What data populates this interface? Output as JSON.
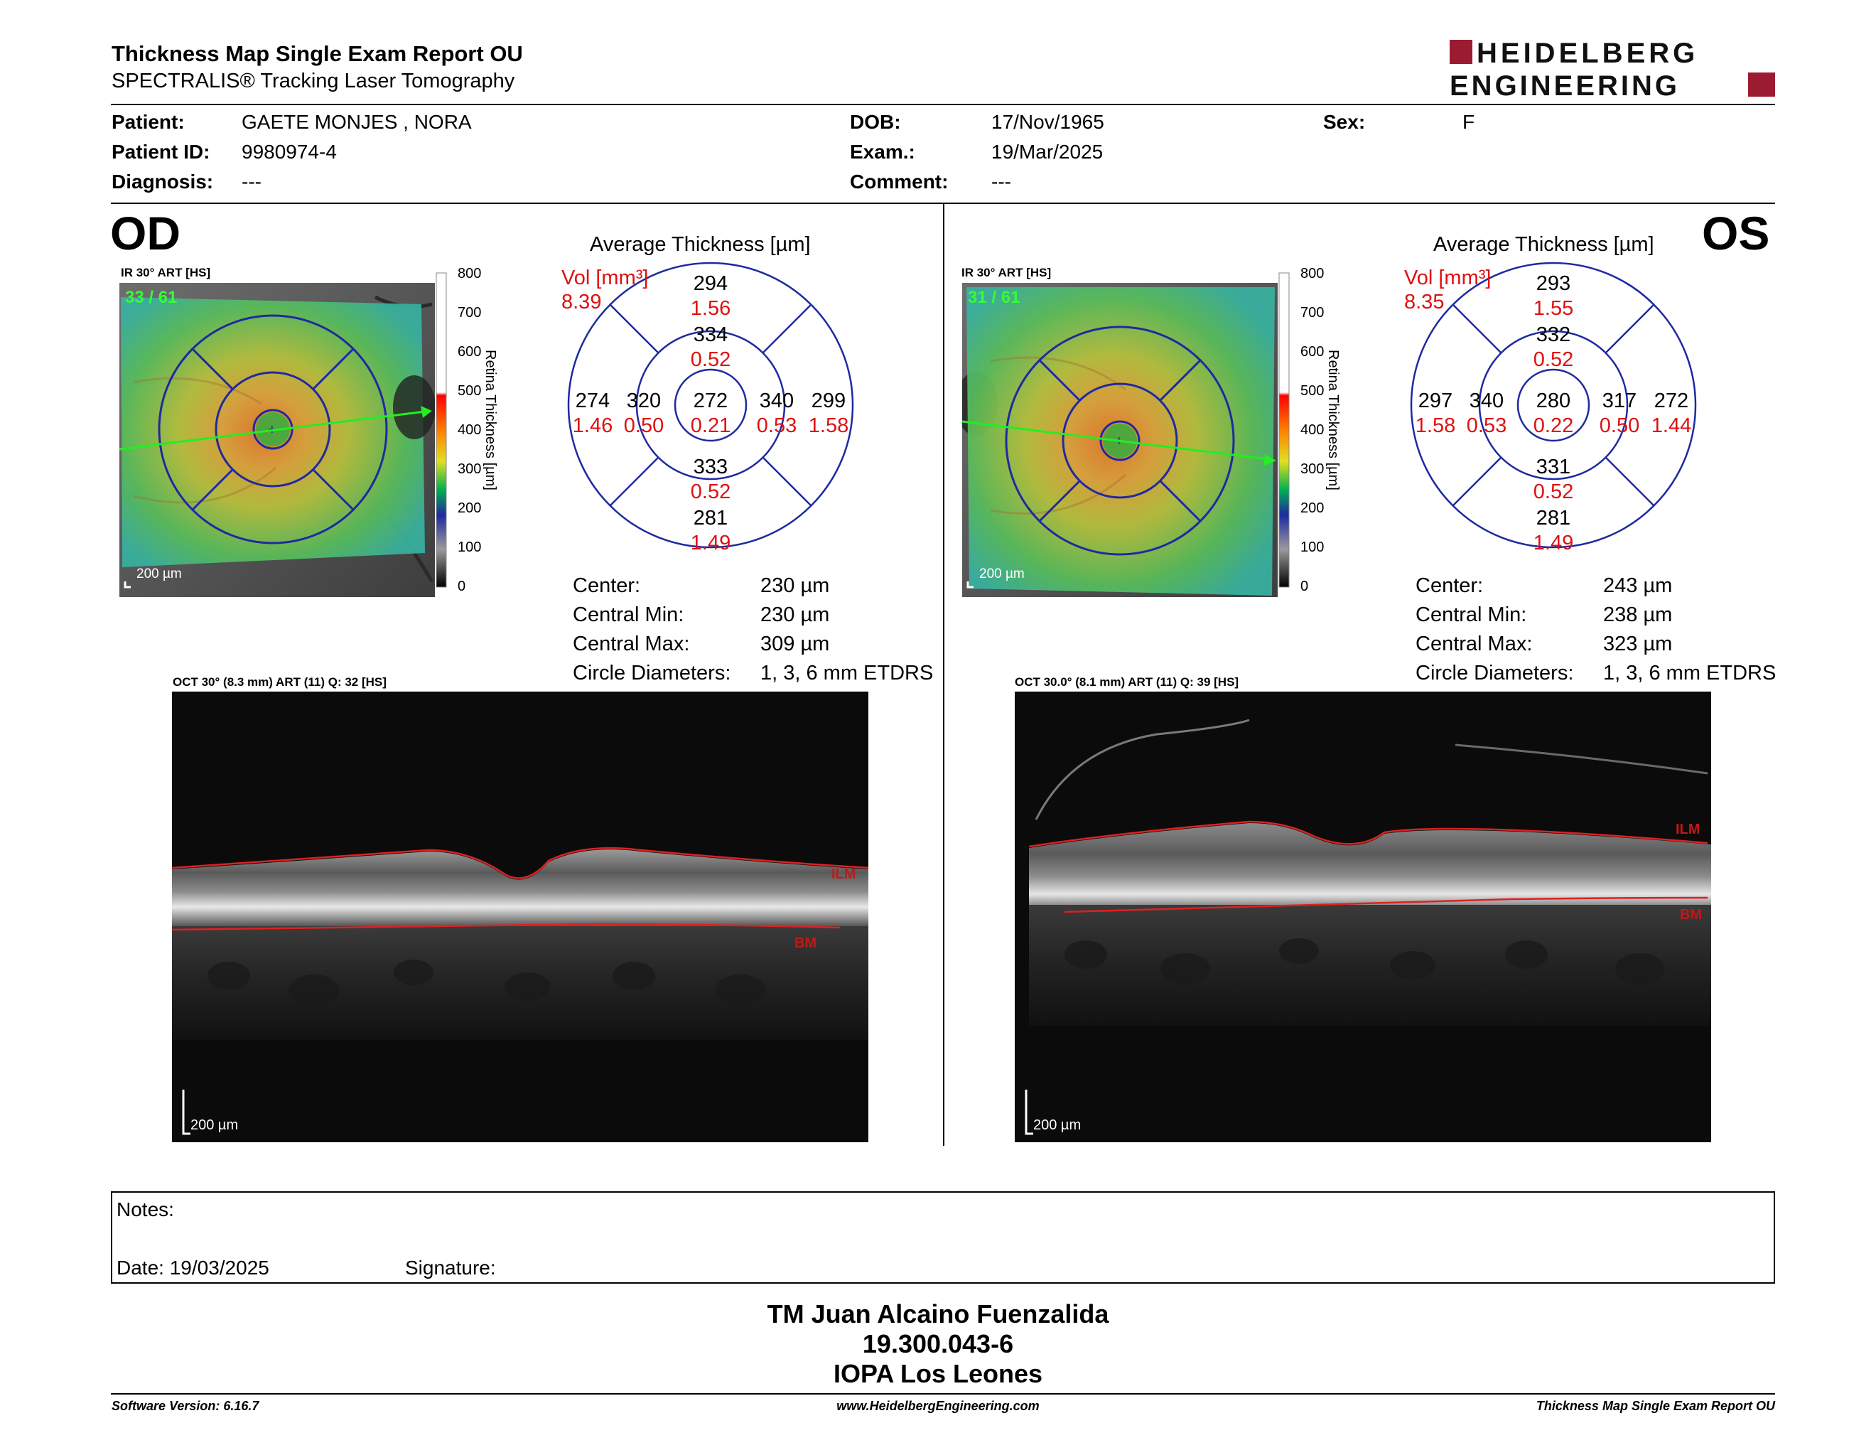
{
  "header": {
    "title": "Thickness Map Single Exam Report OU",
    "subtitle": "SPECTRALIS® Tracking Laser Tomography",
    "logo_line1": "HEIDELBERG",
    "logo_line2": "ENGINEERING"
  },
  "patient": {
    "patient_label": "Patient:",
    "patient_value": "GAETE MONJES , NORA",
    "id_label": "Patient ID:",
    "id_value": "9980974-4",
    "diagnosis_label": "Diagnosis:",
    "diagnosis_value": "---",
    "dob_label": "DOB:",
    "dob_value": "17/Nov/1965",
    "exam_label": "Exam.:",
    "exam_value": "19/Mar/2025",
    "comment_label": "Comment:",
    "comment_value": "---",
    "sex_label": "Sex:",
    "sex_value": "F"
  },
  "od": {
    "eye": "OD",
    "ir_caption": "IR 30° ART [HS]",
    "frame_count": "33 / 61",
    "scale": "200 µm",
    "avg_title": "Average Thickness [µm]",
    "vol_label": "Vol [mm³]",
    "vol_total": "8.39",
    "sectors": {
      "outer_superior": {
        "t": "294",
        "v": "1.56"
      },
      "inner_superior": {
        "t": "334",
        "v": "0.52"
      },
      "outer_left": {
        "t": "274",
        "v": "1.46"
      },
      "inner_left": {
        "t": "320",
        "v": "0.50"
      },
      "center": {
        "t": "272",
        "v": "0.21"
      },
      "inner_right": {
        "t": "340",
        "v": "0.53"
      },
      "outer_right": {
        "t": "299",
        "v": "1.58"
      },
      "inner_inferior": {
        "t": "333",
        "v": "0.52"
      },
      "outer_inferior": {
        "t": "281",
        "v": "1.49"
      }
    },
    "stats": {
      "center_label": "Center:",
      "center_value": "230 µm",
      "min_label": "Central Min:",
      "min_value": "230 µm",
      "max_label": "Central Max:",
      "max_value": "309 µm",
      "diam_label": "Circle Diameters:",
      "diam_value": "1, 3, 6 mm ETDRS"
    },
    "oct_caption": "OCT 30° (8.3 mm) ART (11) Q: 32 [HS]",
    "ilm": "ILM",
    "bm": "BM",
    "oct_scale": "200 µm"
  },
  "os": {
    "eye": "OS",
    "ir_caption": "IR 30° ART [HS]",
    "frame_count": "31 / 61",
    "scale": "200 µm",
    "avg_title": "Average Thickness [µm]",
    "vol_label": "Vol [mm³]",
    "vol_total": "8.35",
    "sectors": {
      "outer_superior": {
        "t": "293",
        "v": "1.55"
      },
      "inner_superior": {
        "t": "332",
        "v": "0.52"
      },
      "outer_left": {
        "t": "297",
        "v": "1.58"
      },
      "inner_left": {
        "t": "340",
        "v": "0.53"
      },
      "center": {
        "t": "280",
        "v": "0.22"
      },
      "inner_right": {
        "t": "317",
        "v": "0.50"
      },
      "outer_right": {
        "t": "272",
        "v": "1.44"
      },
      "inner_inferior": {
        "t": "331",
        "v": "0.52"
      },
      "outer_inferior": {
        "t": "281",
        "v": "1.49"
      }
    },
    "stats": {
      "center_label": "Center:",
      "center_value": "243 µm",
      "min_label": "Central Min:",
      "min_value": "238 µm",
      "max_label": "Central Max:",
      "max_value": "323 µm",
      "diam_label": "Circle Diameters:",
      "diam_value": "1, 3, 6 mm ETDRS"
    },
    "oct_caption": "OCT 30.0° (8.1 mm) ART (11) Q: 39 [HS]",
    "ilm": "ILM",
    "bm": "BM",
    "oct_scale": "200 µm"
  },
  "colorbar": {
    "ticks": [
      "800",
      "700",
      "600",
      "500",
      "400",
      "300",
      "200",
      "100",
      "0"
    ],
    "title": "Retina  Thickness [µm]"
  },
  "notes": {
    "notes_label": "Notes:",
    "date_label": "Date: 19/03/2025",
    "signature_label": "Signature:"
  },
  "signer": {
    "name": "TM Juan Alcaino Fuenzalida",
    "id": "19.300.043-6",
    "org": "IOPA Los Leones"
  },
  "footer": {
    "software": "Software Version: 6.16.7",
    "website": "www.HeidelbergEngineering.com",
    "report": "Thickness Map Single Exam Report OU"
  },
  "colors": {
    "accent_red": "#9b1b30",
    "vol_red": "#e01010",
    "ring_blue": "#1e2aa0"
  }
}
